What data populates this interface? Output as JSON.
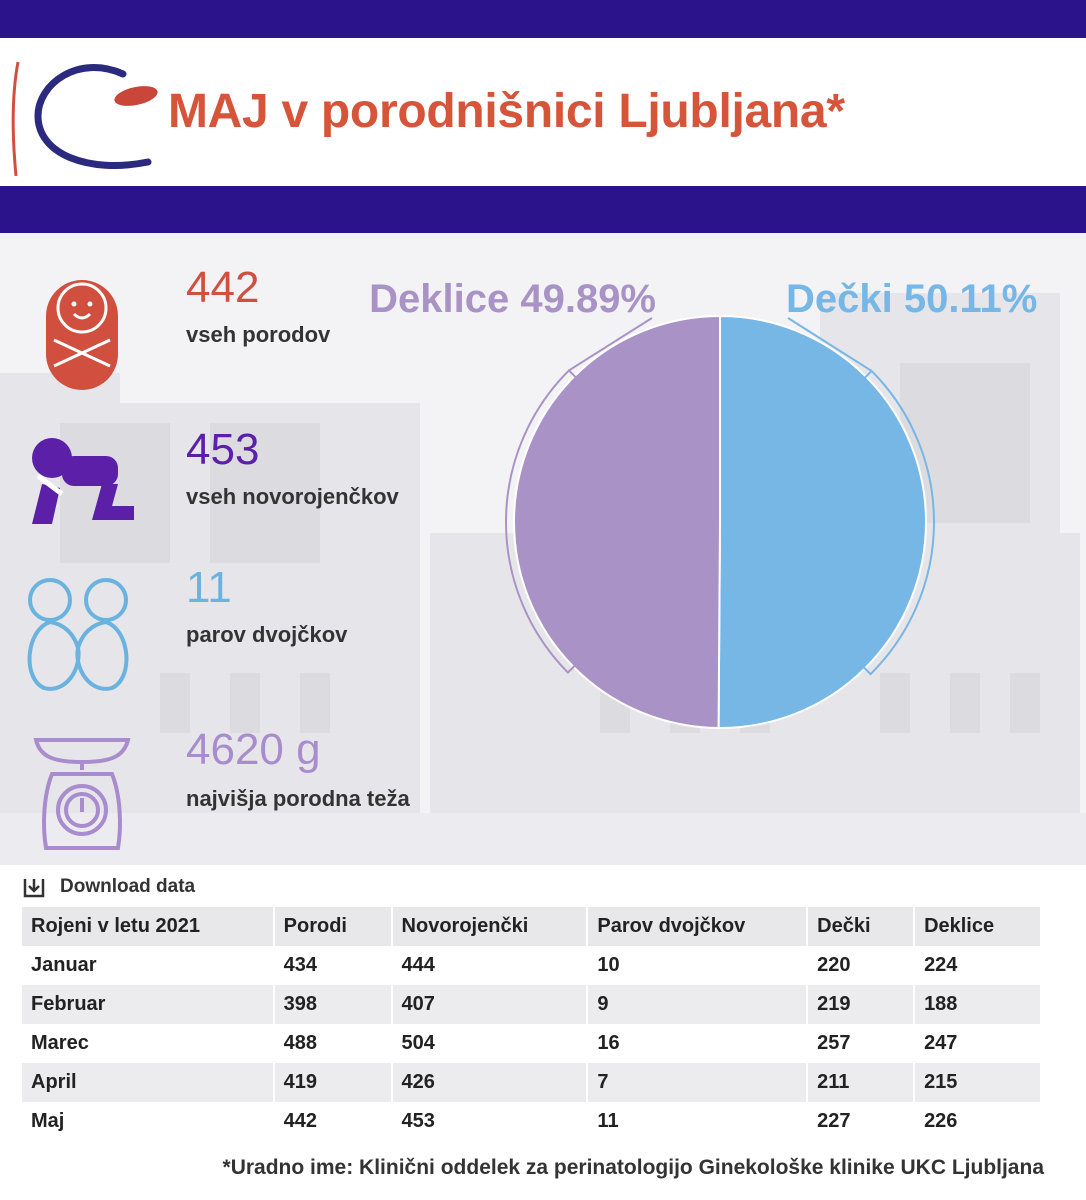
{
  "header": {
    "title": "MAJ v porodnišnici Ljubljana*",
    "title_color": "#d6553a",
    "band_color": "#2b138c"
  },
  "stats": [
    {
      "value": "442",
      "label": "vseh porodov",
      "icon": "swaddled-baby-icon",
      "color": "#d14f3f"
    },
    {
      "value": "453",
      "label": "vseh novorojenčkov",
      "icon": "crawling-baby-icon",
      "color": "#5b1fa8"
    },
    {
      "value": "11",
      "label": "parov dvojčkov",
      "icon": "twins-icon",
      "color": "#6ab2e0"
    },
    {
      "value": "4620 g",
      "label": "najvišja porodna teža",
      "icon": "baby-scale-icon",
      "color": "#a98ccd"
    }
  ],
  "chart_data": {
    "type": "pie",
    "slices": [
      {
        "name": "Dečki",
        "label": "Dečki 50.11%",
        "value": 50.11,
        "color": "#76b7e6"
      },
      {
        "name": "Deklice",
        "label": "Deklice 49.89%",
        "value": 49.89,
        "color": "#a993c6"
      }
    ]
  },
  "download_label": "Download data",
  "table": {
    "headers": [
      "Rojeni v letu 2021",
      "Porodi",
      "Novorojenčki",
      "Parov dvojčkov",
      "Dečki",
      "Deklice"
    ],
    "rows": [
      [
        "Januar",
        "434",
        "444",
        "10",
        "220",
        "224"
      ],
      [
        "Februar",
        "398",
        "407",
        "9",
        "219",
        "188"
      ],
      [
        "Marec",
        "488",
        "504",
        "16",
        "257",
        "247"
      ],
      [
        "April",
        "419",
        "426",
        "7",
        "211",
        "215"
      ],
      [
        "Maj",
        "442",
        "453",
        "11",
        "227",
        "226"
      ]
    ]
  },
  "footnote": "*Uradno ime: Klinični oddelek za perinatologijo Ginekološke klinike UKC Ljubljana"
}
